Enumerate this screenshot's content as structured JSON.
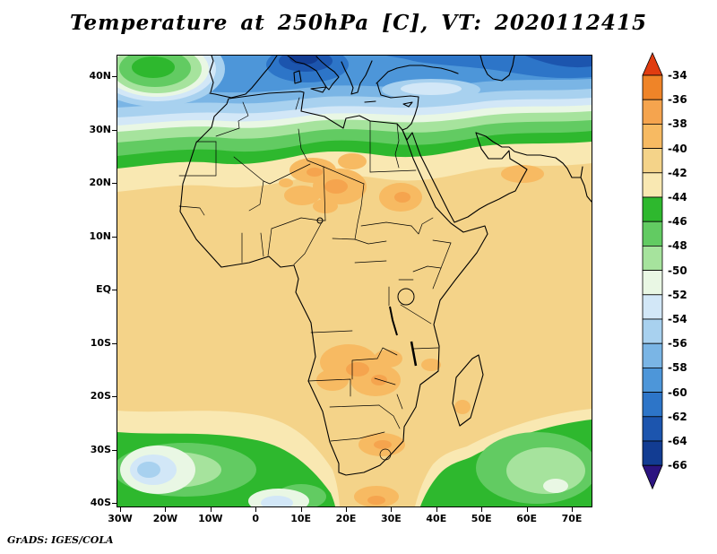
{
  "figure": {
    "title": "Temperature at 250hPa [C], VT: 2020112415",
    "credit": "GrADS: IGES/COLA"
  },
  "chart_data": {
    "type": "heatmap",
    "title": "Temperature at 250hPa [C], VT: 2020112415",
    "variable": "Temperature",
    "level": "250hPa",
    "units": "C",
    "valid_time": "2020112415",
    "projection": "latlon",
    "map_extent": {
      "lon": [
        -31,
        74
      ],
      "lat": [
        -41,
        44
      ]
    },
    "x_axis": {
      "ticks": [
        {
          "label": "30W",
          "lon": -30
        },
        {
          "label": "20W",
          "lon": -20
        },
        {
          "label": "10W",
          "lon": -10
        },
        {
          "label": "0",
          "lon": 0
        },
        {
          "label": "10E",
          "lon": 10
        },
        {
          "label": "20E",
          "lon": 20
        },
        {
          "label": "30E",
          "lon": 30
        },
        {
          "label": "40E",
          "lon": 40
        },
        {
          "label": "50E",
          "lon": 50
        },
        {
          "label": "60E",
          "lon": 60
        },
        {
          "label": "70E",
          "lon": 70
        }
      ]
    },
    "y_axis": {
      "ticks": [
        {
          "label": "40N",
          "lat": 40
        },
        {
          "label": "30N",
          "lat": 30
        },
        {
          "label": "20N",
          "lat": 20
        },
        {
          "label": "10N",
          "lat": 10
        },
        {
          "label": "EQ",
          "lat": 0
        },
        {
          "label": "10S",
          "lat": -10
        },
        {
          "label": "20S",
          "lat": -20
        },
        {
          "label": "30S",
          "lat": -30
        },
        {
          "label": "40S",
          "lat": -40
        }
      ]
    },
    "colorbar": {
      "orientation": "vertical",
      "position": "right",
      "levels": [
        -34,
        -36,
        -38,
        -40,
        -42,
        -44,
        -46,
        -48,
        -50,
        -52,
        -54,
        -56,
        -58,
        -60,
        -62,
        -64,
        -66
      ],
      "colors": [
        "#e03c10",
        "#ef8428",
        "#f5a44e",
        "#f7ba62",
        "#f4d389",
        "#f9e8b2",
        "#2eb82e",
        "#62cb62",
        "#a6e39d",
        "#e9f7e4",
        "#d2e7f7",
        "#a8d1ef",
        "#7ab5e5",
        "#4d96d9",
        "#2d75c8",
        "#1c55ae",
        "#123c92",
        "#2c1480"
      ]
    },
    "features": [
      {
        "region": "Mediterranean and southern Europe (35N-44N)",
        "temp_c": "-56 to -66"
      },
      {
        "region": "NE Atlantic blob near 25W-12W, 40N",
        "temp_c": "-44 to -48 warm anomaly"
      },
      {
        "region": "North Africa band 24N-32N",
        "temp_c": "-44 to -48"
      },
      {
        "region": "Central Sahara patches 10E-25E, 14N-27N",
        "temp_c": "-36 to -40"
      },
      {
        "region": "Sudan patch near 30E, 15N-20N",
        "temp_c": "-38 to -40"
      },
      {
        "region": "Most of tropical Africa and Indian Ocean",
        "temp_c": "-40 to -42"
      },
      {
        "region": "Angola-Zambia patches 14E-30E, 6S-18S",
        "temp_c": "-36 to -40"
      },
      {
        "region": "South Africa interior patch",
        "temp_c": "-38 to -40"
      },
      {
        "region": "Southern ocean band south of ~27S",
        "temp_c": "-44 to -48"
      },
      {
        "region": "SW Atlantic corner 30W-18W, 33S-41S",
        "temp_c": "-48 to -54 cool blob"
      }
    ]
  }
}
